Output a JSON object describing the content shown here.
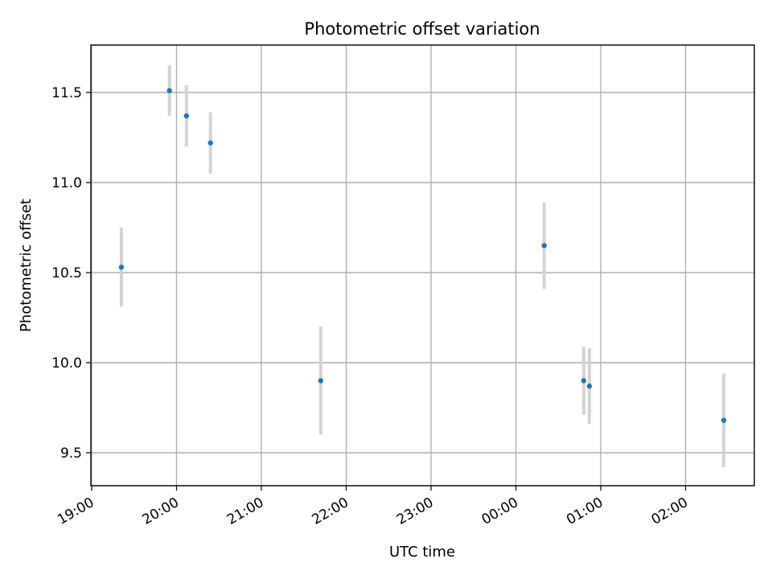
{
  "chart_data": {
    "type": "scatter",
    "title": "Photometric offset variation",
    "xlabel": "UTC time",
    "ylabel": "Photometric offset",
    "x_ticks": [
      "19:00",
      "20:00",
      "21:00",
      "22:00",
      "23:00",
      "00:00",
      "01:00",
      "02:00"
    ],
    "y_ticks": [
      "9.5",
      "10.0",
      "10.5",
      "11.0",
      "11.5"
    ],
    "grid": true,
    "colors": {
      "point": "#1f77b4",
      "errorbar": "#d3d3d3",
      "grid": "#b0b0b0"
    },
    "series": [
      {
        "points": [
          {
            "time": "19:21",
            "y": 10.53,
            "yerr": 0.22
          },
          {
            "time": "19:55",
            "y": 11.51,
            "yerr": 0.14
          },
          {
            "time": "20:07",
            "y": 11.37,
            "yerr": 0.17
          },
          {
            "time": "20:24",
            "y": 11.22,
            "yerr": 0.17
          },
          {
            "time": "21:42",
            "y": 9.9,
            "yerr": 0.3
          },
          {
            "time": "00:20",
            "y": 10.65,
            "yerr": 0.24
          },
          {
            "time": "00:48",
            "y": 9.9,
            "yerr": 0.19
          },
          {
            "time": "00:52",
            "y": 9.87,
            "yerr": 0.21
          },
          {
            "time": "02:27",
            "y": 9.68,
            "yerr": 0.26
          }
        ]
      }
    ]
  }
}
